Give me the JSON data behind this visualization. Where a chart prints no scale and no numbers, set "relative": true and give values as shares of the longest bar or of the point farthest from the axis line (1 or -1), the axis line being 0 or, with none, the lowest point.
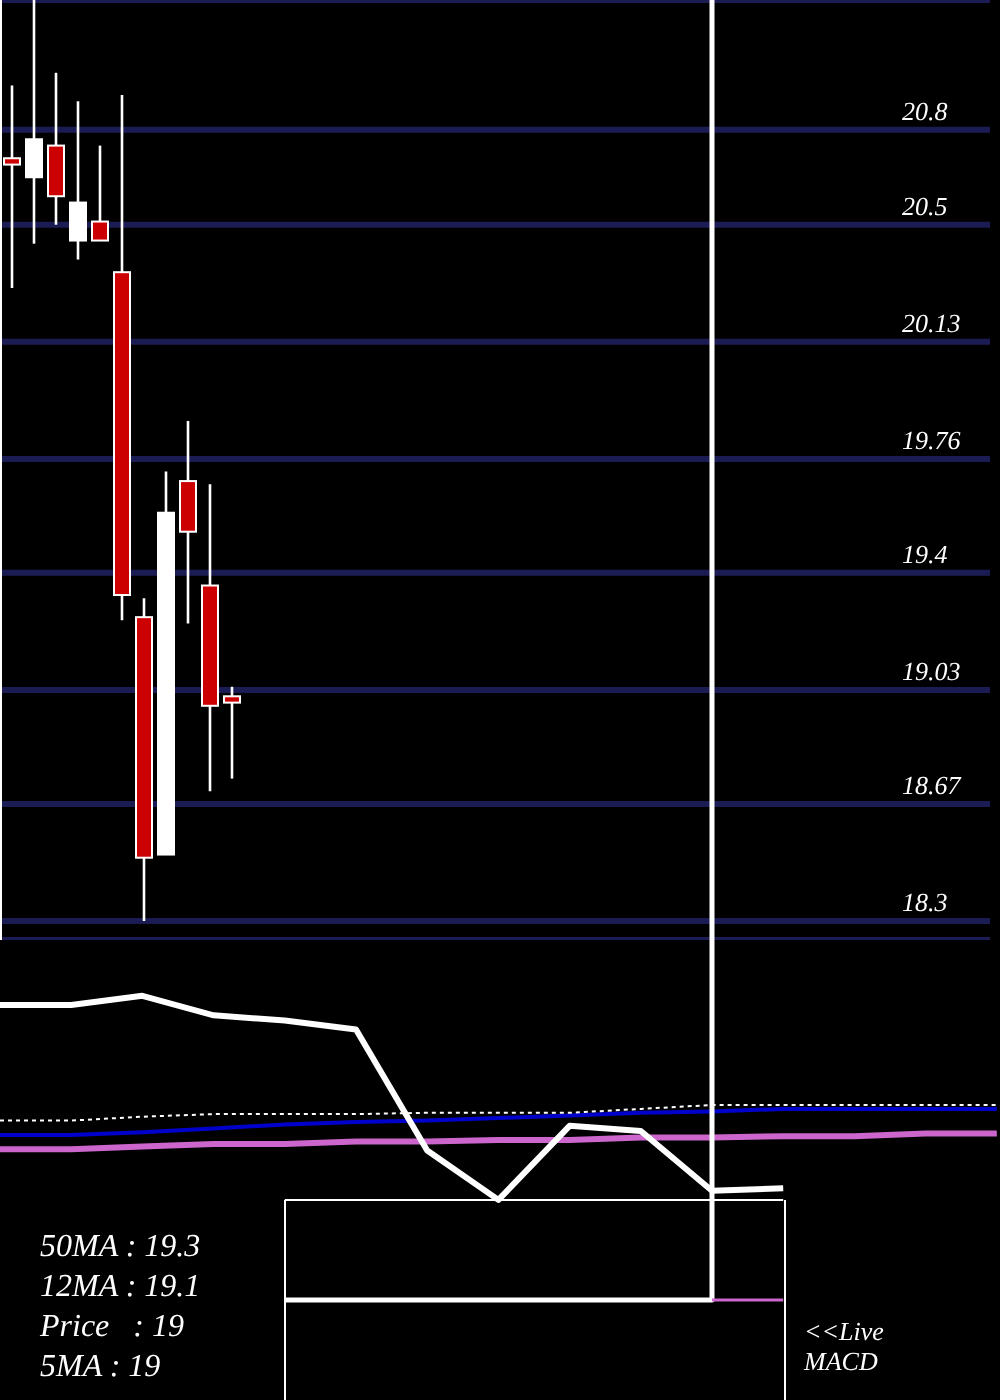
{
  "chart_data": [
    {
      "type": "candlestick",
      "categories": [
        null,
        null,
        null,
        null,
        null,
        null,
        null,
        null,
        null,
        null,
        null,
        null,
        null,
        null,
        null,
        null,
        null,
        null,
        null,
        null,
        null,
        null,
        null,
        null,
        null,
        null,
        null,
        null,
        null,
        null,
        null,
        null,
        null,
        null,
        null,
        null,
        null,
        null,
        null,
        null,
        null,
        null,
        null,
        null,
        null
      ],
      "ohlc": [
        [
          20.71,
          20.94,
          20.3,
          20.69
        ],
        [
          20.65,
          21.21,
          20.44,
          20.77
        ],
        [
          20.75,
          20.98,
          20.5,
          20.59
        ],
        [
          20.45,
          20.89,
          20.39,
          20.57
        ],
        [
          20.51,
          20.75,
          20.45,
          20.45
        ],
        [
          20.35,
          20.91,
          19.25,
          19.33
        ],
        [
          19.26,
          19.32,
          18.3,
          18.5
        ],
        [
          18.51,
          19.72,
          18.51,
          19.59
        ],
        [
          19.69,
          19.88,
          19.24,
          19.53
        ],
        [
          19.36,
          19.68,
          18.71,
          18.98
        ],
        [
          19.01,
          19.04,
          18.75,
          18.99
        ],
        null,
        null,
        null,
        null,
        null,
        null,
        null,
        null,
        null,
        null,
        null,
        null,
        null,
        null,
        null,
        null,
        null,
        null,
        null,
        null,
        null,
        null,
        null,
        null,
        null,
        null,
        null,
        null,
        null,
        null,
        null,
        null,
        null,
        null
      ],
      "colors": [
        "#cc0000",
        "#ffffff",
        "#cc0000",
        "#ffffff",
        "#cc0000",
        "#cc0000",
        "#cc0000",
        "#ffffff",
        "#cc0000",
        "#cc0000",
        "#cc0000",
        null,
        null,
        null,
        null,
        null,
        null,
        null,
        null,
        null,
        null,
        null,
        null,
        null,
        null,
        null,
        null,
        null,
        null,
        null,
        null,
        null,
        null,
        null,
        null,
        null,
        null,
        null,
        null,
        null,
        null,
        null,
        null,
        null,
        null
      ],
      "ylim": [
        18.24,
        21.21
      ],
      "yticks": [
        18.3,
        18.67,
        19.03,
        19.4,
        19.76,
        20.13,
        20.5,
        20.8
      ],
      "grid": "y",
      "tick_labels": "y"
    },
    {
      "type": "line",
      "relative": true,
      "categories": [
        null,
        null,
        null,
        null,
        null,
        null,
        null,
        null,
        null,
        null,
        null,
        null,
        null,
        null,
        null
      ],
      "series": [
        {
          "color": "#0000cc",
          "values": [
            0.127,
            0.127,
            0.129,
            0.132,
            0.135,
            0.137,
            0.138,
            0.14,
            0.142,
            0.144,
            0.145,
            0.147,
            0.147,
            0.147,
            0.147
          ]
        },
        {
          "color": "#cc66cc",
          "values": [
            0.116,
            0.116,
            0.118,
            0.12,
            0.12,
            0.122,
            0.122,
            0.123,
            0.123,
            0.125,
            0.125,
            0.126,
            0.126,
            0.128,
            0.128
          ]
        },
        {
          "color": "#ffffff",
          "line_style": "dotted",
          "values": [
            0.138,
            0.138,
            0.141,
            0.143,
            0.143,
            0.143,
            0.144,
            0.144,
            0.144,
            0.147,
            0.15,
            0.15,
            0.15,
            0.15,
            0.15
          ]
        },
        {
          "color": "#ffffff",
          "values": [
            0.227,
            0.227,
            0.234,
            0.219,
            0.215,
            0.208,
            0.115,
            0.077,
            0.134,
            0.13,
            0.084,
            0.086,
            null,
            null,
            null
          ]
        },
        {
          "color": "#ffffff",
          "values": [
            null,
            null,
            null,
            null,
            0.077,
            0.077,
            0.077,
            0.077,
            0.077,
            0.077,
            0.077,
            0.077,
            null,
            null,
            null
          ]
        },
        {
          "type": "step",
          "color": "#ffffff",
          "values": [
            null,
            null,
            null,
            null,
            0,
            0,
            0,
            0,
            0,
            0,
            1,
            null,
            null,
            null,
            null
          ]
        },
        {
          "type": "step",
          "color": "#cc66cc",
          "values": [
            null,
            null,
            null,
            null,
            null,
            null,
            null,
            null,
            null,
            null,
            0,
            0,
            null,
            null,
            null
          ]
        }
      ],
      "annotations": [
        "50MA : 19.3",
        "12MA : 19.1",
        "Price   : 19",
        "5MA : 19",
        "<<Live MACD"
      ]
    }
  ]
}
